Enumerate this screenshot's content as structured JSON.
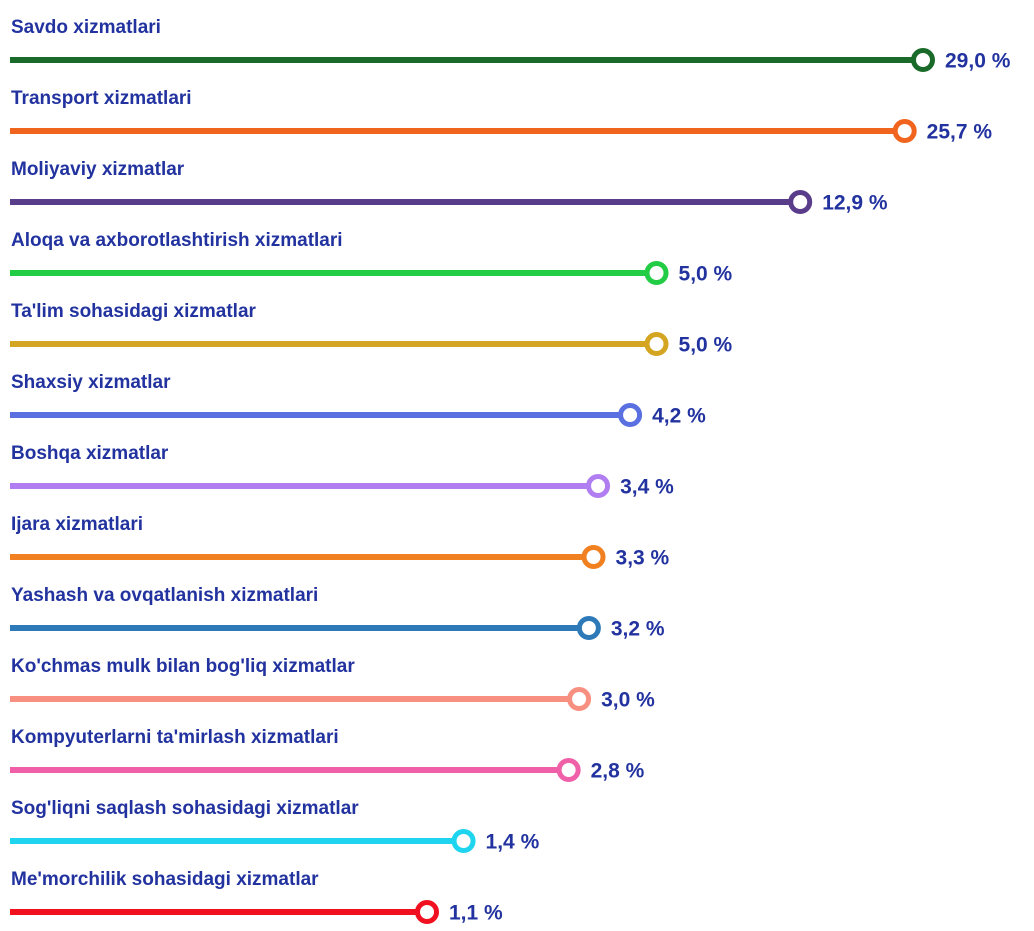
{
  "chart_data": {
    "type": "lollipop",
    "log_scale": true,
    "categories": [
      "Savdo xizmatlari",
      "Transport xizmatlari",
      "Moliyaviy xizmatlar",
      "Aloqa va axborotlashtirish xizmatlari",
      "Ta'lim sohasidagi xizmatlar",
      "Shaxsiy xizmatlar",
      "Boshqa xizmatlar",
      "Ijara xizmatlari",
      "Yashash va ovqatlanish xizmatlari",
      "Ko'chmas mulk bilan bog'liq xizmatlar",
      "Kompyuterlarni ta'mirlash xizmatlari",
      "Sog'liqni saqlash sohasidagi xizmatlar",
      "Me'morchilik sohasidagi xizmatlar"
    ],
    "values": [
      29.0,
      25.7,
      12.9,
      5.0,
      5.0,
      4.2,
      3.4,
      3.3,
      3.2,
      3.0,
      2.8,
      1.4,
      1.1
    ],
    "value_labels": [
      "29,0 %",
      "25,7 %",
      "12,9 %",
      "5,0 %",
      "5,0 %",
      "4,2 %",
      "3,4 %",
      "3,3 %",
      "3,2 %",
      "3,0 %",
      "2,8 %",
      "1,4 %",
      "1,1 %"
    ],
    "colors": [
      "#1a6b2a",
      "#f0641e",
      "#5a3d8a",
      "#22cc44",
      "#d4a520",
      "#5a6fe0",
      "#b07ef0",
      "#f08020",
      "#2e7ab8",
      "#f79080",
      "#f060a8",
      "#1ed4ee",
      "#f01020"
    ]
  }
}
